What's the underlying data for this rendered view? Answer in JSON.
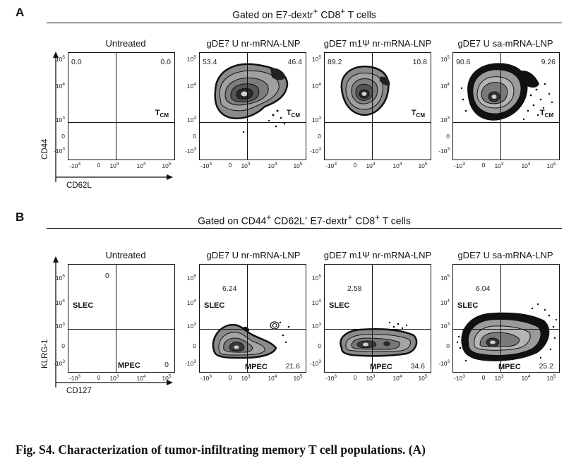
{
  "panel_a": {
    "letter": "A",
    "gate_title": {
      "main": "Gated on E7-dextr",
      "sup1": "+",
      "mid": " CD8",
      "sup2": "+",
      "tail": " T cells"
    },
    "y_axis": "CD44",
    "x_axis": "CD62L",
    "gate": {
      "main": "T",
      "sub": "CM"
    },
    "plots": [
      {
        "title": "Untreated",
        "q_upper_left": "0.0",
        "q_upper_right": "0.0"
      },
      {
        "title": "gDE7 U nr-mRNA-LNP",
        "q_upper_left": "53.4",
        "q_upper_right": "46.4"
      },
      {
        "title": "gDE7 m1Ψ nr-mRNA-LNP",
        "q_upper_left": "89.2",
        "q_upper_right": "10.8"
      },
      {
        "title": "gDE7 U sa-mRNA-LNP",
        "q_upper_left": "90.6",
        "q_upper_right": "9.26"
      }
    ]
  },
  "panel_b": {
    "letter": "B",
    "gate_title": {
      "main": "Gated on CD44",
      "sup1": "+",
      "mid1": " CD62L",
      "sup2": "-",
      "mid2": " E7-dextr",
      "sup3": "+",
      "mid3": " CD8",
      "sup4": "+",
      "tail": " T cells"
    },
    "y_axis": "KLRG-1",
    "x_axis": "CD127",
    "gate_upper": "SLEC",
    "gate_lower": "MPEC",
    "plots": [
      {
        "title": "Untreated",
        "q_upper": "0",
        "q_lower": "0"
      },
      {
        "title": "gDE7 U nr-mRNA-LNP",
        "q_upper": "6.24",
        "q_lower": "21.6"
      },
      {
        "title": "gDE7 m1Ψ nr-mRNA-LNP",
        "q_upper": "2.58",
        "q_lower": "34.6"
      },
      {
        "title": "gDE7 U sa-mRNA-LNP",
        "q_upper": "6.04",
        "q_lower": "25.2"
      }
    ]
  },
  "axis_ticks": {
    "y": [
      {
        "base": "10",
        "exp": "5"
      },
      {
        "base": "10",
        "exp": "4"
      },
      {
        "base": "10",
        "exp": "3"
      },
      {
        "base": "0",
        "exp": ""
      },
      {
        "base": "-10",
        "exp": "3"
      }
    ],
    "x": [
      {
        "base": "-10",
        "exp": "3"
      },
      {
        "base": "0",
        "exp": ""
      },
      {
        "base": "10",
        "exp": "3"
      },
      {
        "base": "10",
        "exp": "4"
      },
      {
        "base": "10",
        "exp": "5"
      }
    ]
  },
  "caption": "Fig. S4. Characterization of tumor-infiltrating memory T cell populations. (A)"
}
